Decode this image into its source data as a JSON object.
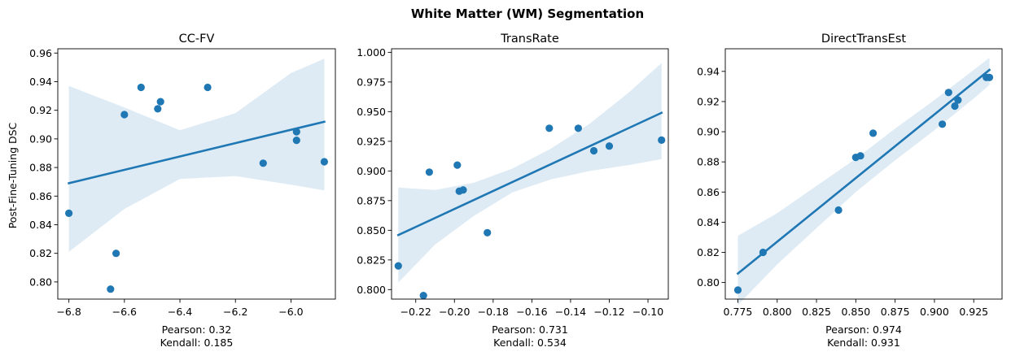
{
  "figure": {
    "title": "White Matter (WM) Segmentation"
  },
  "colors": {
    "points": "#1f77b4",
    "line": "#1f77b4",
    "band": "#1f77b4",
    "axes": "#000000"
  },
  "chart_data": [
    {
      "type": "scatter",
      "title": "CC-FV",
      "ylabel": "Post-Fine-Tuning DSC",
      "xlim": [
        -6.84,
        -5.84
      ],
      "ylim": [
        0.788,
        0.963
      ],
      "xticks": [
        -6.8,
        -6.6,
        -6.4,
        -6.2,
        -6.0
      ],
      "xtick_labels": [
        "−6.8",
        "−6.6",
        "−6.4",
        "−6.2",
        "−6.0"
      ],
      "yticks": [
        0.8,
        0.82,
        0.84,
        0.86,
        0.88,
        0.9,
        0.92,
        0.94,
        0.96
      ],
      "ytick_labels": [
        "0.80",
        "0.82",
        "0.84",
        "0.86",
        "0.88",
        "0.90",
        "0.92",
        "0.94",
        "0.96"
      ],
      "points": [
        {
          "x": -6.8,
          "y": 0.848
        },
        {
          "x": -6.65,
          "y": 0.795
        },
        {
          "x": -6.63,
          "y": 0.82
        },
        {
          "x": -6.6,
          "y": 0.917
        },
        {
          "x": -6.54,
          "y": 0.936
        },
        {
          "x": -6.48,
          "y": 0.921
        },
        {
          "x": -6.47,
          "y": 0.926
        },
        {
          "x": -6.3,
          "y": 0.936
        },
        {
          "x": -6.1,
          "y": 0.883
        },
        {
          "x": -5.98,
          "y": 0.905
        },
        {
          "x": -5.98,
          "y": 0.899
        },
        {
          "x": -5.88,
          "y": 0.884
        }
      ],
      "fit_line": {
        "x": [
          -6.8,
          -5.88
        ],
        "y": [
          0.869,
          0.912
        ]
      },
      "ci_band": {
        "x": [
          -6.8,
          -6.6,
          -6.4,
          -6.2,
          -6.0,
          -5.88
        ],
        "lower": [
          0.821,
          0.851,
          0.872,
          0.874,
          0.868,
          0.864
        ],
        "upper": [
          0.937,
          0.922,
          0.906,
          0.918,
          0.946,
          0.956
        ]
      },
      "annotation": {
        "pearson": "Pearson: 0.32",
        "kendall": "Kendall: 0.185"
      }
    },
    {
      "type": "scatter",
      "title": "TransRate",
      "xlim": [
        -0.2325,
        -0.0895
      ],
      "ylim": [
        0.792,
        1.003
      ],
      "xticks": [
        -0.22,
        -0.2,
        -0.18,
        -0.16,
        -0.14,
        -0.12,
        -0.1
      ],
      "xtick_labels": [
        "−0.22",
        "−0.20",
        "−0.18",
        "−0.16",
        "−0.14",
        "−0.12",
        "−0.10"
      ],
      "yticks": [
        0.8,
        0.825,
        0.85,
        0.875,
        0.9,
        0.925,
        0.95,
        0.975,
        1.0
      ],
      "ytick_labels": [
        "0.800",
        "0.825",
        "0.850",
        "0.875",
        "0.900",
        "0.925",
        "0.950",
        "0.975",
        "1.000"
      ],
      "points": [
        {
          "x": -0.229,
          "y": 0.82
        },
        {
          "x": -0.216,
          "y": 0.795
        },
        {
          "x": -0.213,
          "y": 0.899
        },
        {
          "x": -0.1985,
          "y": 0.905
        },
        {
          "x": -0.1975,
          "y": 0.883
        },
        {
          "x": -0.1955,
          "y": 0.884
        },
        {
          "x": -0.183,
          "y": 0.848
        },
        {
          "x": -0.151,
          "y": 0.936
        },
        {
          "x": -0.136,
          "y": 0.936
        },
        {
          "x": -0.128,
          "y": 0.917
        },
        {
          "x": -0.12,
          "y": 0.921
        },
        {
          "x": -0.093,
          "y": 0.926
        }
      ],
      "fit_line": {
        "x": [
          -0.229,
          -0.093
        ],
        "y": [
          0.846,
          0.949
        ]
      },
      "ci_band": {
        "x": [
          -0.229,
          -0.21,
          -0.19,
          -0.17,
          -0.15,
          -0.13,
          -0.11,
          -0.093
        ],
        "lower": [
          0.806,
          0.838,
          0.862,
          0.882,
          0.893,
          0.9,
          0.905,
          0.91
        ],
        "upper": [
          0.886,
          0.884,
          0.89,
          0.902,
          0.919,
          0.94,
          0.966,
          0.991
        ]
      },
      "annotation": {
        "pearson": "Pearson: 0.731",
        "kendall": "Kendall: 0.534"
      }
    },
    {
      "type": "scatter",
      "title": "DirectTransEst",
      "xlim": [
        0.767,
        0.943
      ],
      "ylim": [
        0.789,
        0.955
      ],
      "xticks": [
        0.775,
        0.8,
        0.825,
        0.85,
        0.875,
        0.9,
        0.925
      ],
      "xtick_labels": [
        "0.775",
        "0.800",
        "0.825",
        "0.850",
        "0.875",
        "0.900",
        "0.925"
      ],
      "yticks": [
        0.8,
        0.82,
        0.84,
        0.86,
        0.88,
        0.9,
        0.92,
        0.94
      ],
      "ytick_labels": [
        "0.80",
        "0.82",
        "0.84",
        "0.86",
        "0.88",
        "0.90",
        "0.92",
        "0.94"
      ],
      "points": [
        {
          "x": 0.775,
          "y": 0.795
        },
        {
          "x": 0.791,
          "y": 0.82
        },
        {
          "x": 0.839,
          "y": 0.848
        },
        {
          "x": 0.85,
          "y": 0.883
        },
        {
          "x": 0.853,
          "y": 0.884
        },
        {
          "x": 0.861,
          "y": 0.899
        },
        {
          "x": 0.905,
          "y": 0.905
        },
        {
          "x": 0.909,
          "y": 0.926
        },
        {
          "x": 0.913,
          "y": 0.917
        },
        {
          "x": 0.915,
          "y": 0.921
        },
        {
          "x": 0.933,
          "y": 0.936
        },
        {
          "x": 0.935,
          "y": 0.936
        }
      ],
      "fit_line": {
        "x": [
          0.775,
          0.935
        ],
        "y": [
          0.806,
          0.941
        ]
      },
      "ci_band": {
        "x": [
          0.775,
          0.8,
          0.825,
          0.85,
          0.875,
          0.9,
          0.925,
          0.935
        ],
        "lower": [
          0.785,
          0.812,
          0.836,
          0.86,
          0.881,
          0.901,
          0.922,
          0.931
        ],
        "upper": [
          0.831,
          0.846,
          0.864,
          0.882,
          0.902,
          0.921,
          0.941,
          0.949
        ]
      },
      "annotation": {
        "pearson": "Pearson: 0.974",
        "kendall": "Kendall: 0.931"
      }
    }
  ]
}
